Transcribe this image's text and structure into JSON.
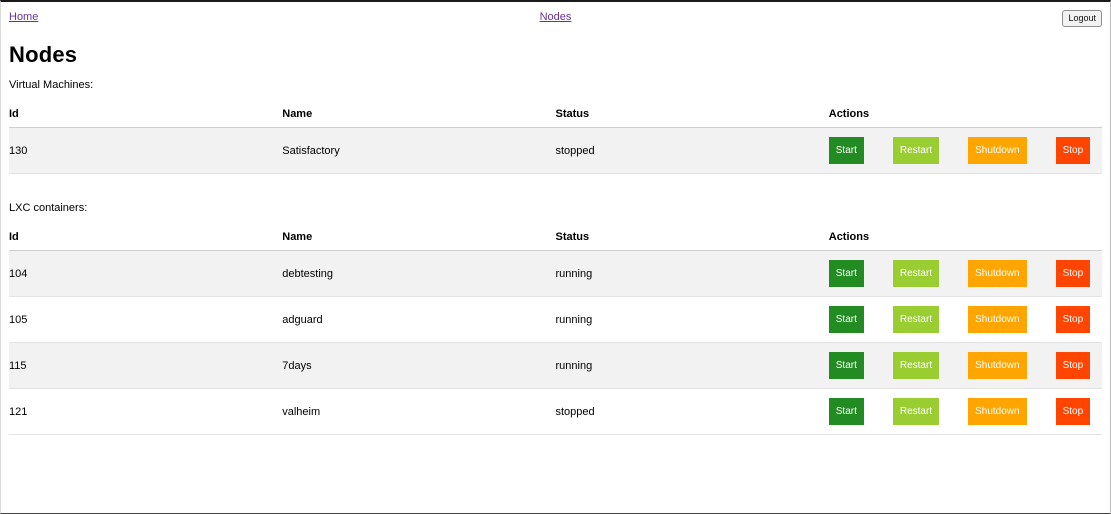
{
  "nav": {
    "home_label": "Home",
    "nodes_label": "Nodes",
    "logout_label": "Logout"
  },
  "page_title": "Nodes",
  "columns": [
    "Id",
    "Name",
    "Status",
    "Actions"
  ],
  "action_buttons": [
    {
      "label": "Start",
      "color": "#228B22"
    },
    {
      "label": "Restart",
      "color": "#9ACD32"
    },
    {
      "label": "Shutdown",
      "color": "#FFA500"
    },
    {
      "label": "Stop",
      "color": "#FF4500"
    }
  ],
  "colors": {
    "link": "#663399",
    "row_stripe": "#f2f2f2"
  },
  "sections": [
    {
      "label": "Virtual Machines:",
      "rows": [
        {
          "id": "130",
          "name": "Satisfactory",
          "status": "stopped"
        }
      ]
    },
    {
      "label": "LXC containers:",
      "rows": [
        {
          "id": "104",
          "name": "debtesting",
          "status": "running"
        },
        {
          "id": "105",
          "name": "adguard",
          "status": "running"
        },
        {
          "id": "115",
          "name": "7days",
          "status": "running"
        },
        {
          "id": "121",
          "name": "valheim",
          "status": "stopped"
        }
      ]
    }
  ]
}
